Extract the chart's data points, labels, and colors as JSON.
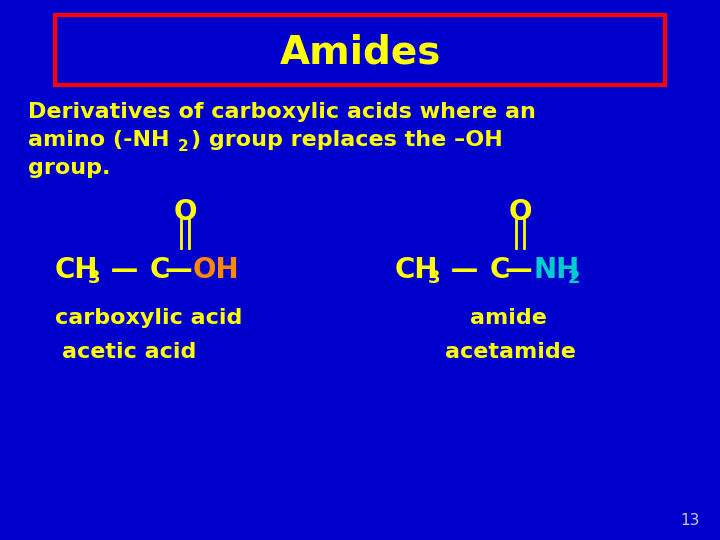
{
  "background_color": "#0000cc",
  "title": "Amides",
  "title_color": "#ffff00",
  "title_box_edge_color": "#ff0000",
  "title_box_face_color": "#0000cc",
  "desc_color": "#ffff00",
  "formula_color": "#ffff00",
  "oh_color": "#ff8800",
  "nh2_color": "#00cccc",
  "label_carboxylic": "carboxylic acid",
  "label_amide": "amide",
  "label_acetic": "acetic acid",
  "label_acetamide": "acetamide",
  "page_number": "13",
  "page_number_color": "#cccccc",
  "title_fontsize": 28,
  "desc_fontsize": 16,
  "formula_fontsize": 20,
  "sub_fontsize": 13,
  "label_fontsize": 16
}
